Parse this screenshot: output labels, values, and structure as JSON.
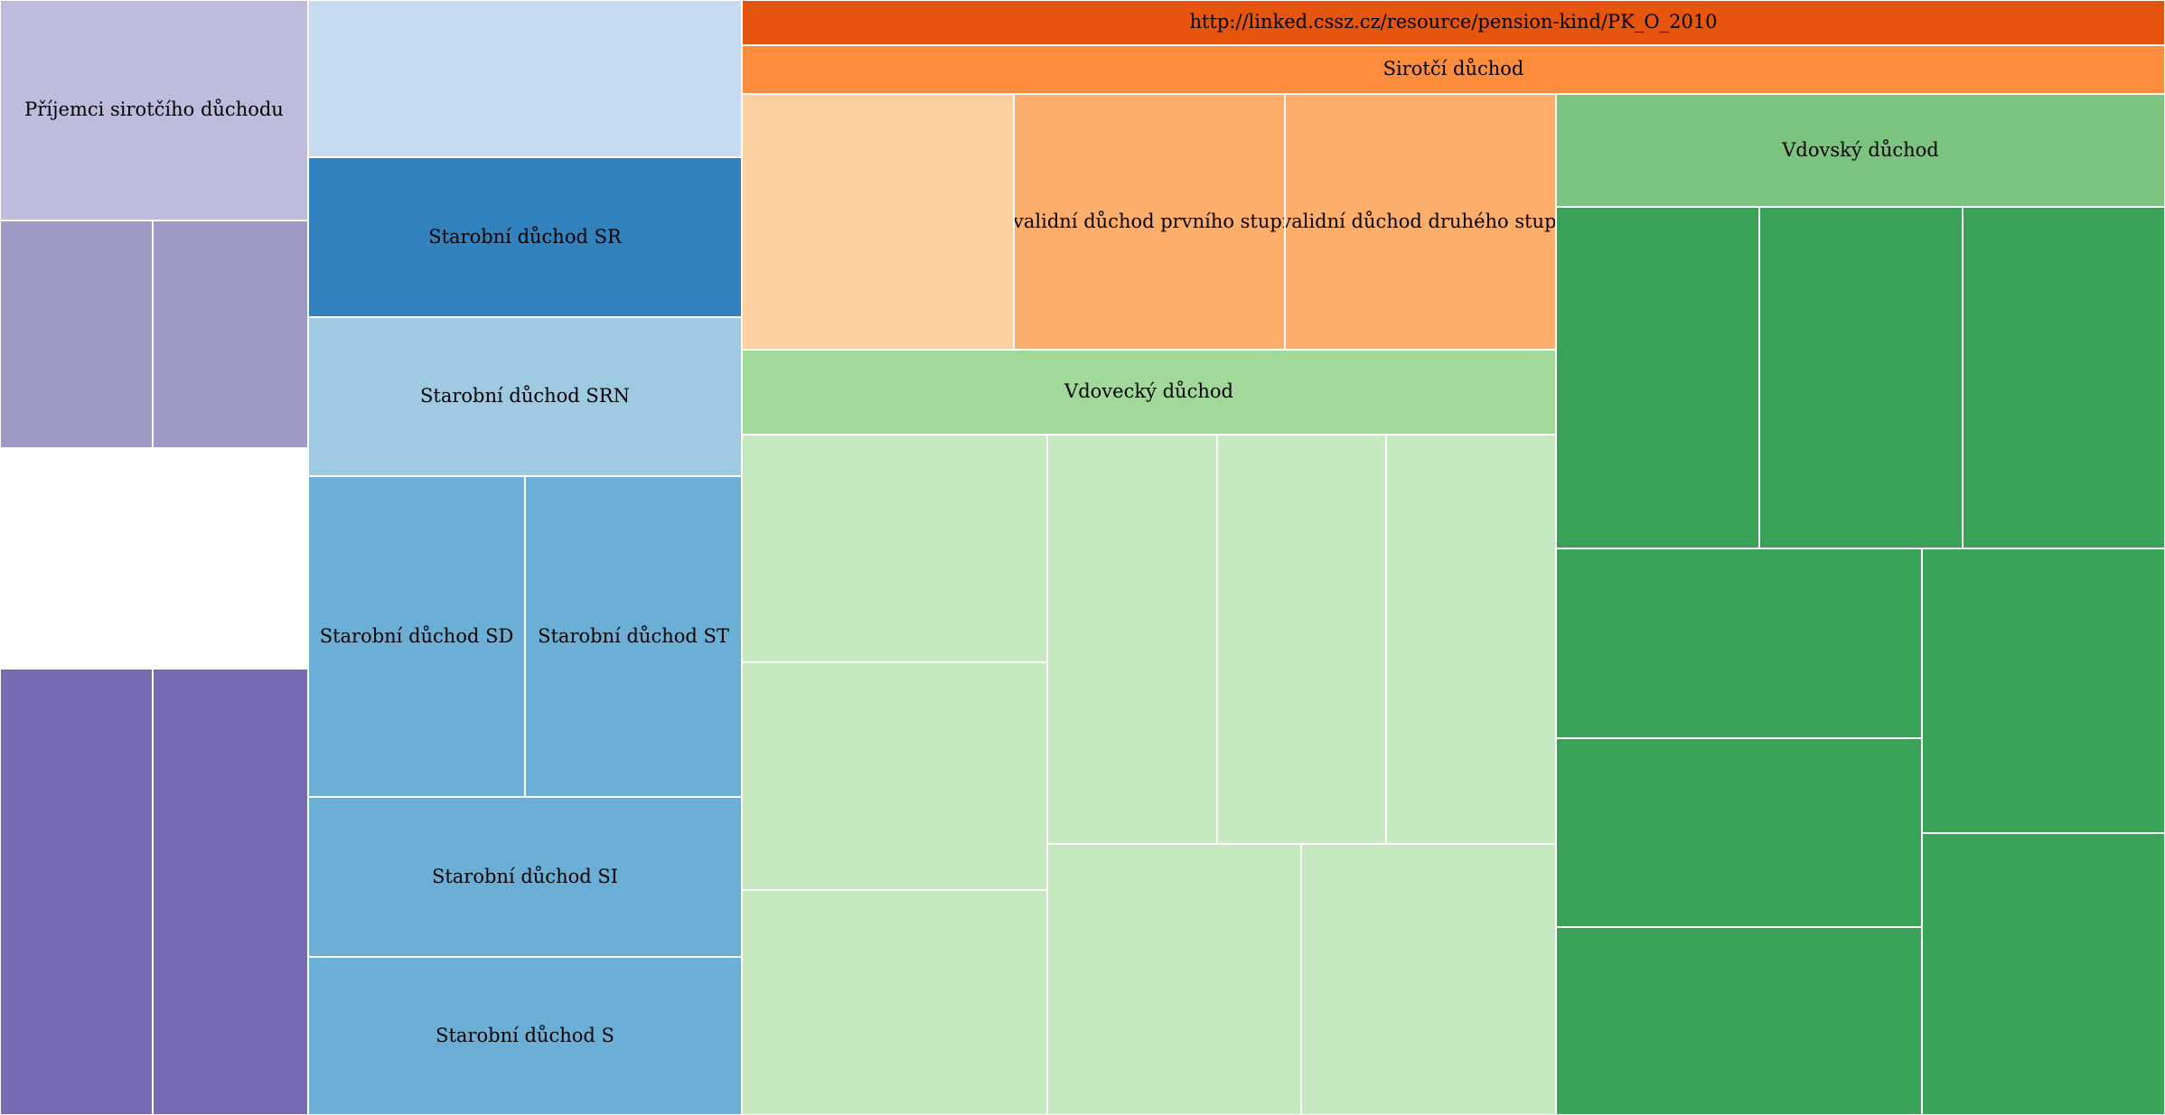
{
  "chart_data": {
    "type": "treemap",
    "title": "",
    "nodes": [
      {
        "id": "pk_sirotci_prijemci",
        "label": "Příjemci sirotčího důchodu",
        "color": "#bcbddc"
      },
      {
        "id": "pk_sirotci_a",
        "label": "",
        "color": "#9e9ac8"
      },
      {
        "id": "pk_sirotci_b",
        "label": "",
        "color": "#9e9ac8"
      },
      {
        "id": "pk_sirotci_c",
        "label": "",
        "color": "#756bb1"
      },
      {
        "id": "pk_sirotci_d",
        "label": "",
        "color": "#756bb1"
      },
      {
        "id": "pk_starobni_top",
        "label": "",
        "color": "#c6dbef"
      },
      {
        "id": "pk_starobni_sr",
        "label": "Starobní důchod SR",
        "color": "#3182bd"
      },
      {
        "id": "pk_starobni_srn",
        "label": "Starobní důchod SRN",
        "color": "#9ecae1"
      },
      {
        "id": "pk_starobni_sd",
        "label": "Starobní důchod SD",
        "color": "#6baed6"
      },
      {
        "id": "pk_starobni_st",
        "label": "Starobní důchod ST",
        "color": "#6baed6"
      },
      {
        "id": "pk_starobni_si",
        "label": "Starobní důchod SI",
        "color": "#6baed6"
      },
      {
        "id": "pk_starobni_s",
        "label": "Starobní důchod S",
        "color": "#6baed6"
      },
      {
        "id": "pk_o_2010",
        "label": "http://linked.cssz.cz/resource/pension-kind/PK_O_2010",
        "color": "#e6550d"
      },
      {
        "id": "pk_sirotci_duchod",
        "label": "Sirotčí důchod",
        "color": "#fd8d3c"
      },
      {
        "id": "pk_invalidni_0",
        "label": "",
        "color": "#fdd0a2"
      },
      {
        "id": "pk_invalidni_1",
        "label": "Invalidní důchod prvního stupně",
        "color": "#fdae6b"
      },
      {
        "id": "pk_invalidni_2",
        "label": "Invalidní důchod druhého stupně",
        "color": "#fdae6b"
      },
      {
        "id": "pk_vdovecky",
        "label": "Vdovecký důchod",
        "color": "#a1d99b"
      },
      {
        "id": "pk_vdovecky_1",
        "label": "",
        "color": "#c7e9c0"
      },
      {
        "id": "pk_vdovecky_2",
        "label": "",
        "color": "#c7e9c0"
      },
      {
        "id": "pk_vdovecky_3",
        "label": "",
        "color": "#c7e9c0"
      },
      {
        "id": "pk_vdovecky_4",
        "label": "",
        "color": "#c7e9c0"
      },
      {
        "id": "pk_vdovecky_5",
        "label": "",
        "color": "#c7e9c0"
      },
      {
        "id": "pk_vdovecky_6",
        "label": "",
        "color": "#c7e9c0"
      },
      {
        "id": "pk_vdovecky_7",
        "label": "",
        "color": "#c7e9c0"
      },
      {
        "id": "pk_vdovecky_8",
        "label": "",
        "color": "#c7e9c0"
      },
      {
        "id": "pk_vdovecky_9",
        "label": "",
        "color": "#c7e9c0"
      },
      {
        "id": "pk_vdovsky",
        "label": "Vdovský důchod",
        "color": "#7bc47f"
      },
      {
        "id": "pk_vdovsky_1",
        "label": "",
        "color": "#38a356"
      },
      {
        "id": "pk_vdovsky_2",
        "label": "",
        "color": "#38a356"
      },
      {
        "id": "pk_vdovsky_3",
        "label": "",
        "color": "#38a356"
      },
      {
        "id": "pk_vdovsky_4",
        "label": "",
        "color": "#38a356"
      },
      {
        "id": "pk_vdovsky_5",
        "label": "",
        "color": "#38a356"
      },
      {
        "id": "pk_vdovsky_6",
        "label": "",
        "color": "#38a356"
      },
      {
        "id": "pk_vdovsky_7",
        "label": "",
        "color": "#38a356"
      },
      {
        "id": "pk_vdovsky_8",
        "label": "",
        "color": "#38a356"
      }
    ]
  }
}
